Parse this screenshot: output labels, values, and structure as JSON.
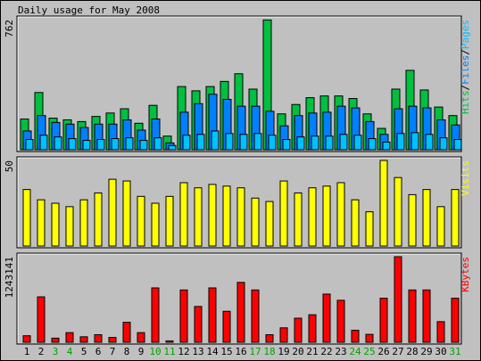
{
  "title": "Daily usage for May 2008",
  "colors": {
    "background": "#c0c0c0",
    "panel": "#c0c0c0",
    "hits": "#00c040",
    "files": "#0080ff",
    "pages": "#00c0ff",
    "visits": "#ffff00",
    "kbytes": "#ff0000",
    "weekend_day": "#00a000",
    "weekday": "#000000",
    "axis_text": "#000000"
  },
  "chart_data": [
    {
      "type": "bar",
      "panel": "hits-files-pages",
      "title": "Daily usage for May 2008",
      "categories": [
        "1",
        "2",
        "3",
        "4",
        "5",
        "6",
        "7",
        "8",
        "9",
        "10",
        "11",
        "12",
        "13",
        "14",
        "15",
        "16",
        "17",
        "18",
        "19",
        "20",
        "21",
        "22",
        "23",
        "24",
        "25",
        "26",
        "27",
        "28",
        "29",
        "30",
        "31"
      ],
      "weekend_days": [
        "3",
        "4",
        "10",
        "11",
        "17",
        "18",
        "24",
        "25",
        "31"
      ],
      "ymax_label": "762",
      "ylim": [
        0,
        762
      ],
      "legend": [
        "Pages",
        "/",
        "Files",
        "/",
        "Hits"
      ],
      "series": [
        {
          "name": "Hits",
          "values": [
            180,
            335,
            185,
            175,
            165,
            195,
            215,
            240,
            155,
            260,
            80,
            370,
            345,
            370,
            400,
            445,
            355,
            760,
            210,
            265,
            305,
            315,
            315,
            300,
            210,
            125,
            355,
            465,
            350,
            250,
            200
          ]
        },
        {
          "name": "Files",
          "values": [
            110,
            200,
            160,
            150,
            130,
            150,
            150,
            175,
            115,
            180,
            40,
            220,
            270,
            325,
            295,
            255,
            255,
            225,
            140,
            200,
            215,
            220,
            255,
            245,
            165,
            90,
            240,
            255,
            245,
            175,
            145
          ]
        },
        {
          "name": "Pages",
          "values": [
            60,
            85,
            75,
            65,
            55,
            60,
            65,
            70,
            55,
            70,
            25,
            85,
            90,
            110,
            95,
            90,
            95,
            85,
            60,
            75,
            80,
            80,
            90,
            85,
            65,
            45,
            95,
            100,
            90,
            70,
            60
          ]
        }
      ]
    },
    {
      "type": "bar",
      "panel": "visits",
      "categories": [
        "1",
        "2",
        "3",
        "4",
        "5",
        "6",
        "7",
        "8",
        "9",
        "10",
        "11",
        "12",
        "13",
        "14",
        "15",
        "16",
        "17",
        "18",
        "19",
        "20",
        "21",
        "22",
        "23",
        "24",
        "25",
        "26",
        "27",
        "28",
        "29",
        "30",
        "31"
      ],
      "ymax_label": "50",
      "ylim": [
        0,
        50
      ],
      "legend": [
        "Visits"
      ],
      "series": [
        {
          "name": "Visits",
          "values": [
            33,
            27,
            25,
            23,
            27,
            31,
            39,
            38,
            29,
            25,
            29,
            37,
            34,
            36,
            35,
            34,
            28,
            26,
            38,
            31,
            34,
            35,
            37,
            27,
            20,
            50,
            40,
            30,
            33,
            23,
            33
          ]
        }
      ]
    },
    {
      "type": "bar",
      "panel": "kbytes",
      "categories": [
        "1",
        "2",
        "3",
        "4",
        "5",
        "6",
        "7",
        "8",
        "9",
        "10",
        "11",
        "12",
        "13",
        "14",
        "15",
        "16",
        "17",
        "18",
        "19",
        "20",
        "21",
        "22",
        "23",
        "24",
        "25",
        "26",
        "27",
        "28",
        "29",
        "30",
        "31"
      ],
      "ymax_label": "1243141",
      "ylim": [
        0,
        1243141
      ],
      "legend": [
        "KBytes"
      ],
      "series": [
        {
          "name": "KBytes",
          "values": [
            95000,
            660000,
            60000,
            140000,
            80000,
            110000,
            70000,
            290000,
            140000,
            790000,
            20000,
            760000,
            520000,
            790000,
            450000,
            870000,
            760000,
            110000,
            210000,
            350000,
            400000,
            700000,
            610000,
            175000,
            115000,
            640000,
            1243141,
            760000,
            760000,
            300000,
            640000
          ]
        }
      ]
    }
  ]
}
